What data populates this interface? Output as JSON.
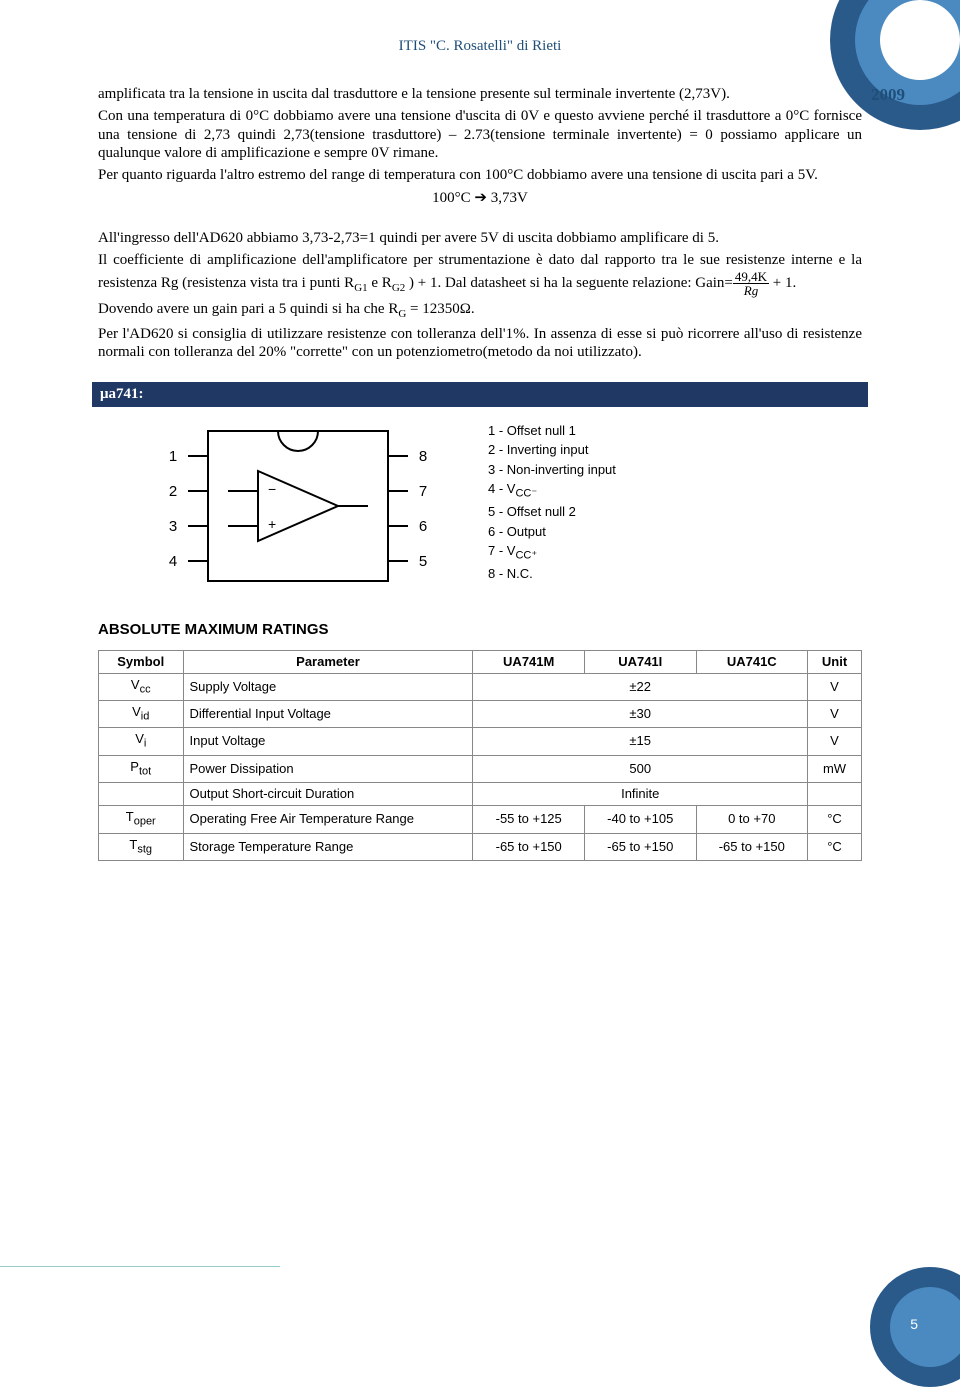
{
  "meta": {
    "header": "ITIS \"C. Rosatelli\" di Rieti",
    "year": "2009",
    "page_number": "5"
  },
  "body": {
    "p1": "amplificata tra la tensione in uscita dal trasduttore e la tensione presente sul terminale invertente (2,73V).",
    "p2": "Con una temperatura di 0°C dobbiamo avere una tensione d'uscita di 0V e questo avviene perché il trasduttore a 0°C fornisce una tensione di 2,73 quindi 2,73(tensione trasduttore) – 2.73(tensione terminale invertente) = 0 possiamo applicare un qualunque valore di amplificazione e sempre 0V rimane.",
    "p3": "Per quanto riguarda l'altro estremo del range di temperatura con 100°C dobbiamo avere una tensione di uscita pari a 5V.",
    "center1": "100°C ➔ 3,73V",
    "p4": "All'ingresso dell'AD620 abbiamo 3,73-2,73=1 quindi per avere 5V di uscita dobbiamo amplificare di 5.",
    "p5a": "Il coefficiente di amplificazione dell'amplificatore per strumentazione è dato dal rapporto tra le sue resistenze interne e la resistenza Rg (resistenza vista tra i punti R",
    "p5b": " e R",
    "p5c": " ) + 1. Dal datasheet si ha la seguente relazione: Gain=",
    "frac_num": "49,4K",
    "frac_den": "Rg",
    "p5d": " + 1.",
    "p6a": "Dovendo avere un gain pari a 5 quindi si ha che R",
    "p6b": " = 12350Ω.",
    "p7": "Per l'AD620 si consiglia di utilizzare resistenze con tolleranza dell'1%. In assenza di esse si può ricorrere all'uso di resistenze normali con tolleranza del 20% \"corrette\" con un potenziometro(metodo da noi utilizzato).",
    "section": "μa741:",
    "sub_g1": "G1",
    "sub_g2": "G2",
    "sub_g": "G"
  },
  "pinout": {
    "left": [
      "1",
      "2",
      "3",
      "4"
    ],
    "right": [
      "8",
      "7",
      "6",
      "5"
    ],
    "legend": [
      "1 - Offset null 1",
      "2 - Inverting input",
      "3 - Non-inverting input",
      "4 - V",
      "5 - Offset null 2",
      "6 - Output",
      "7 - V",
      "8 - N.C."
    ],
    "vcc_minus": "CC⁻",
    "vcc_plus": "CC⁺"
  },
  "ratings": {
    "title": "ABSOLUTE MAXIMUM RATINGS",
    "headers": [
      "Symbol",
      "Parameter",
      "UA741M",
      "UA741I",
      "UA741C",
      "Unit"
    ],
    "rows": [
      {
        "s": "V",
        "sub": "cc",
        "p": "Supply Voltage",
        "span": "±22",
        "u": "V"
      },
      {
        "s": "V",
        "sub": "id",
        "p": "Differential Input Voltage",
        "span": "±30",
        "u": "V"
      },
      {
        "s": "V",
        "sub": "i",
        "p": "Input Voltage",
        "span": "±15",
        "u": "V"
      },
      {
        "s": "P",
        "sub": "tot",
        "p": "Power Dissipation",
        "span": "500",
        "u": "mW"
      },
      {
        "s": "",
        "sub": "",
        "p": "Output Short-circuit Duration",
        "span": "Infinite",
        "u": ""
      },
      {
        "s": "T",
        "sub": "oper",
        "p": "Operating Free Air Temperature Range",
        "c1": "-55 to +125",
        "c2": "-40 to +105",
        "c3": "0 to +70",
        "u": "°C"
      },
      {
        "s": "T",
        "sub": "stg",
        "p": "Storage Temperature Range",
        "c1": "-65 to +150",
        "c2": "-65 to +150",
        "c3": "-65 to +150",
        "u": "°C"
      }
    ]
  }
}
